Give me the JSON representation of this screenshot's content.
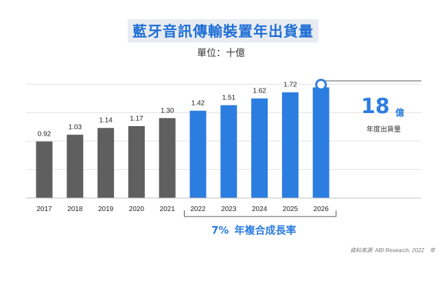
{
  "chart_data": {
    "type": "bar",
    "title": "藍牙音訊傳輸裝置年出貨量",
    "subtitle": "單位：十億",
    "categories": [
      "2017",
      "2018",
      "2019",
      "2020",
      "2021",
      "2022",
      "2023",
      "2024",
      "2025",
      "2026"
    ],
    "values": [
      0.92,
      1.03,
      1.14,
      1.17,
      1.3,
      1.42,
      1.51,
      1.62,
      1.72,
      1.8
    ],
    "data_labels": [
      "0.92",
      "1.03",
      "1.14",
      "1.17",
      "1.30",
      "1.42",
      "1.51",
      "1.62",
      "1.72",
      ""
    ],
    "ylim": [
      0,
      1.85
    ],
    "grid": true,
    "colors": {
      "actual": "#5f5f5f",
      "forecast": "#2b7de0"
    },
    "forecast_start_index": 5
  },
  "callout": {
    "value": "18",
    "unit": "億",
    "label": "年度出貨量"
  },
  "cagr": {
    "value": "7%",
    "label": "年複合成長率"
  },
  "source": "資料來源: ABI Research, 2022　年"
}
